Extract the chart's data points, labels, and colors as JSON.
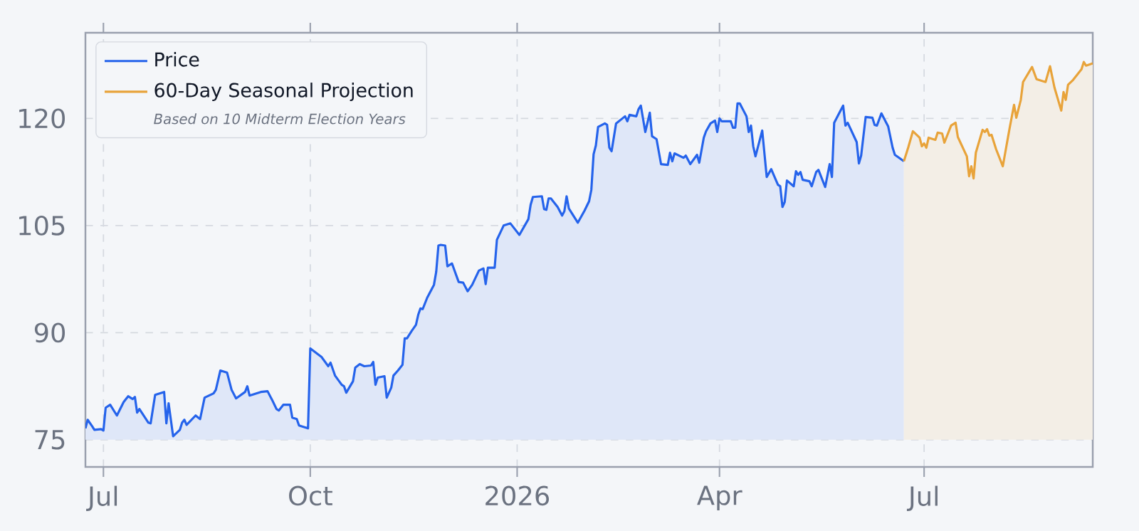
{
  "chart_data": {
    "type": "area",
    "annotations": [
      "Based on 10 Midterm Election Years"
    ],
    "series": [
      {
        "name": "Price",
        "color": "#2563eb",
        "x": [
          "2025-06-23",
          "2025-06-24",
          "2025-06-26",
          "2025-06-27",
          "2025-06-30",
          "2025-07-01",
          "2025-07-02",
          "2025-07-04",
          "2025-07-07",
          "2025-07-10",
          "2025-07-12",
          "2025-07-14",
          "2025-07-15",
          "2025-07-16",
          "2025-07-17",
          "2025-07-21",
          "2025-07-22",
          "2025-07-24",
          "2025-07-28",
          "2025-07-29",
          "2025-07-30",
          "2025-08-01",
          "2025-08-04",
          "2025-08-05",
          "2025-08-06",
          "2025-08-07",
          "2025-08-11",
          "2025-08-13",
          "2025-08-15",
          "2025-08-19",
          "2025-08-20",
          "2025-08-22",
          "2025-08-25",
          "2025-08-27",
          "2025-08-29",
          "2025-09-02",
          "2025-09-03",
          "2025-09-04",
          "2025-09-09",
          "2025-09-12",
          "2025-09-14",
          "2025-09-16",
          "2025-09-17",
          "2025-09-19",
          "2025-09-22",
          "2025-09-23",
          "2025-09-25",
          "2025-09-26",
          "2025-09-30",
          "2025-10-01",
          "2025-10-06",
          "2025-10-09",
          "2025-10-10",
          "2025-10-12",
          "2025-10-15",
          "2025-10-16",
          "2025-10-17",
          "2025-10-20",
          "2025-10-21",
          "2025-10-23",
          "2025-10-25",
          "2025-10-28",
          "2025-10-29",
          "2025-10-30",
          "2025-10-31",
          "2025-11-03",
          "2025-11-04",
          "2025-11-06",
          "2025-11-07",
          "2025-11-09",
          "2025-11-11",
          "2025-11-12",
          "2025-11-13",
          "2025-11-15",
          "2025-11-17",
          "2025-11-18",
          "2025-11-19",
          "2025-11-20",
          "2025-11-22",
          "2025-11-25",
          "2025-11-26",
          "2025-11-27",
          "2025-11-28",
          "2025-11-30",
          "2025-12-01",
          "2025-12-03",
          "2025-12-06",
          "2025-12-08",
          "2025-12-10",
          "2025-12-12",
          "2025-12-15",
          "2025-12-17",
          "2025-12-18",
          "2025-12-19",
          "2025-12-22",
          "2025-12-23",
          "2025-12-26",
          "2025-12-29",
          "2025-12-30",
          "2026-01-02",
          "2026-01-06",
          "2026-01-07",
          "2026-01-08",
          "2026-01-12",
          "2026-01-13",
          "2026-01-14",
          "2026-01-15",
          "2026-01-16",
          "2026-01-19",
          "2026-01-21",
          "2026-01-22",
          "2026-01-23",
          "2026-01-24",
          "2026-01-27",
          "2026-01-28",
          "2026-01-31",
          "2026-02-02",
          "2026-02-03",
          "2026-02-04",
          "2026-02-05",
          "2026-02-06",
          "2026-02-09",
          "2026-02-10",
          "2026-02-11",
          "2026-02-12",
          "2026-02-14",
          "2026-02-18",
          "2026-02-19",
          "2026-02-20",
          "2026-02-23",
          "2026-02-24",
          "2026-02-25",
          "2026-02-27",
          "2026-03-01",
          "2026-03-02",
          "2026-03-04",
          "2026-03-06",
          "2026-03-09",
          "2026-03-10",
          "2026-03-11",
          "2026-03-12",
          "2026-03-16",
          "2026-03-17",
          "2026-03-19",
          "2026-03-22",
          "2026-03-23",
          "2026-03-25",
          "2026-03-26",
          "2026-03-28",
          "2026-03-30",
          "2026-03-31",
          "2026-04-01",
          "2026-04-02",
          "2026-04-06",
          "2026-04-07",
          "2026-04-08",
          "2026-04-09",
          "2026-04-10",
          "2026-04-13",
          "2026-04-14",
          "2026-04-15",
          "2026-04-16",
          "2026-04-17",
          "2026-04-20",
          "2026-04-22",
          "2026-04-24",
          "2026-04-27",
          "2026-04-28",
          "2026-04-29",
          "2026-04-30",
          "2026-05-01",
          "2026-05-04",
          "2026-05-05",
          "2026-05-06",
          "2026-05-07",
          "2026-05-08",
          "2026-05-11",
          "2026-05-12",
          "2026-05-14",
          "2026-05-15",
          "2026-05-18",
          "2026-05-20",
          "2026-05-21",
          "2026-05-22",
          "2026-05-26",
          "2026-05-27",
          "2026-05-28",
          "2026-06-01",
          "2026-06-02",
          "2026-06-03",
          "2026-06-05",
          "2026-06-08",
          "2026-06-09",
          "2026-06-10",
          "2026-06-12",
          "2026-06-15",
          "2026-06-17",
          "2026-06-18",
          "2026-06-22"
        ],
        "values": [
          76.6,
          77.8,
          76.9,
          76.4,
          76.5,
          76.3,
          79.5,
          79.9,
          78.4,
          80.3,
          81.1,
          80.7,
          81.0,
          78.8,
          79.3,
          77.4,
          77.3,
          81.3,
          81.7,
          77.3,
          80.1,
          75.5,
          76.4,
          77.4,
          77.8,
          77.1,
          78.4,
          77.9,
          80.9,
          81.5,
          82.0,
          84.7,
          84.4,
          82.0,
          80.8,
          81.7,
          82.5,
          81.2,
          81.7,
          81.8,
          80.6,
          79.3,
          79.1,
          79.9,
          79.9,
          78.1,
          77.9,
          77.0,
          76.6,
          87.8,
          86.6,
          85.3,
          85.8,
          84.0,
          82.7,
          82.5,
          81.6,
          83.2,
          85.1,
          85.6,
          85.3,
          85.4,
          85.9,
          82.7,
          83.7,
          83.9,
          80.9,
          82.3,
          84.0,
          84.7,
          85.5,
          89.2,
          89.2,
          90.2,
          91.1,
          92.5,
          93.4,
          93.3,
          94.9,
          96.7,
          98.5,
          102.2,
          102.3,
          102.2,
          99.3,
          99.7,
          97.1,
          97.0,
          95.8,
          96.7,
          98.7,
          99.0,
          96.8,
          99.1,
          99.1,
          103.0,
          105.0,
          105.3,
          104.9,
          103.7,
          105.9,
          107.9,
          109.0,
          109.1,
          107.3,
          107.2,
          108.8,
          108.8,
          107.6,
          106.4,
          107.0,
          109.1,
          107.4,
          105.9,
          105.4,
          107.1,
          108.4,
          110.0,
          115.0,
          116.2,
          118.8,
          119.3,
          119.1,
          115.9,
          115.4,
          119.3,
          120.3,
          119.6,
          120.5,
          120.3,
          121.3,
          121.8,
          118.1,
          120.8,
          117.5,
          117.1,
          113.6,
          113.5,
          115.2,
          114.0,
          115.1,
          114.5,
          114.8,
          113.6,
          114.9,
          113.8,
          117.3,
          118.2,
          119.3,
          119.7,
          118.1,
          120.0,
          119.6,
          119.6,
          118.7,
          118.7,
          122.1,
          122.1,
          120.3,
          118.1,
          119.0,
          116.1,
          114.7,
          118.3,
          111.8,
          112.9,
          110.7,
          110.5,
          107.6,
          108.3,
          111.3,
          110.5,
          112.6,
          112.1,
          112.5,
          111.4,
          111.2,
          110.5,
          112.5,
          112.8,
          110.4,
          113.6,
          111.8,
          119.4,
          121.8,
          119.0,
          119.4,
          116.7,
          113.7,
          114.8,
          120.2,
          120.1,
          119.1,
          119.0,
          120.7,
          118.9,
          115.9,
          114.9,
          114.0
        ]
      },
      {
        "name": "60-Day Seasonal Projection",
        "color": "#e8a33a",
        "x": [
          "2026-06-22",
          "2026-06-24",
          "2026-06-26",
          "2026-06-29",
          "2026-06-30",
          "2026-07-01",
          "2026-07-02",
          "2026-07-03",
          "2026-07-06",
          "2026-07-07",
          "2026-07-09",
          "2026-07-10",
          "2026-07-13",
          "2026-07-15",
          "2026-07-16",
          "2026-07-20",
          "2026-07-21",
          "2026-07-22",
          "2026-07-23",
          "2026-07-24",
          "2026-07-27",
          "2026-07-28",
          "2026-07-29",
          "2026-07-30",
          "2026-07-31",
          "2026-08-02",
          "2026-08-05",
          "2026-08-08",
          "2026-08-10",
          "2026-08-11",
          "2026-08-13",
          "2026-08-14",
          "2026-08-18",
          "2026-08-20",
          "2026-08-24",
          "2026-08-26",
          "2026-08-28",
          "2026-08-31",
          "2026-09-01",
          "2026-09-02",
          "2026-09-03",
          "2026-09-05",
          "2026-09-07",
          "2026-09-09",
          "2026-09-10",
          "2026-09-11",
          "2026-09-14"
        ],
        "values": [
          114.0,
          116.0,
          118.2,
          117.3,
          116.1,
          116.5,
          115.9,
          117.3,
          117.0,
          118.0,
          117.9,
          116.6,
          119.0,
          119.4,
          117.4,
          114.7,
          111.9,
          113.3,
          111.6,
          115.2,
          118.4,
          118.1,
          118.5,
          117.6,
          117.7,
          115.7,
          113.3,
          118.6,
          121.9,
          120.1,
          122.6,
          125.1,
          127.2,
          125.5,
          125.1,
          127.3,
          124.3,
          121.1,
          123.7,
          122.6,
          124.7,
          125.3,
          126.1,
          126.9,
          127.9,
          127.4,
          127.7
        ]
      }
    ],
    "xlim": [
      "2025-06-23",
      "2026-09-14"
    ],
    "xticks": [
      {
        "value": "2025-07-01",
        "label": "Jul"
      },
      {
        "value": "2025-10-01",
        "label": "Oct"
      },
      {
        "value": "2026-01-01",
        "label": "2026"
      },
      {
        "value": "2026-04-01",
        "label": "Apr"
      },
      {
        "value": "2026-07-01",
        "label": "Jul"
      }
    ],
    "ylim": [
      71.2,
      132
    ],
    "yticks": [
      75,
      90,
      105,
      120
    ],
    "grid": true,
    "legend": "top left",
    "line_style": "solid"
  }
}
